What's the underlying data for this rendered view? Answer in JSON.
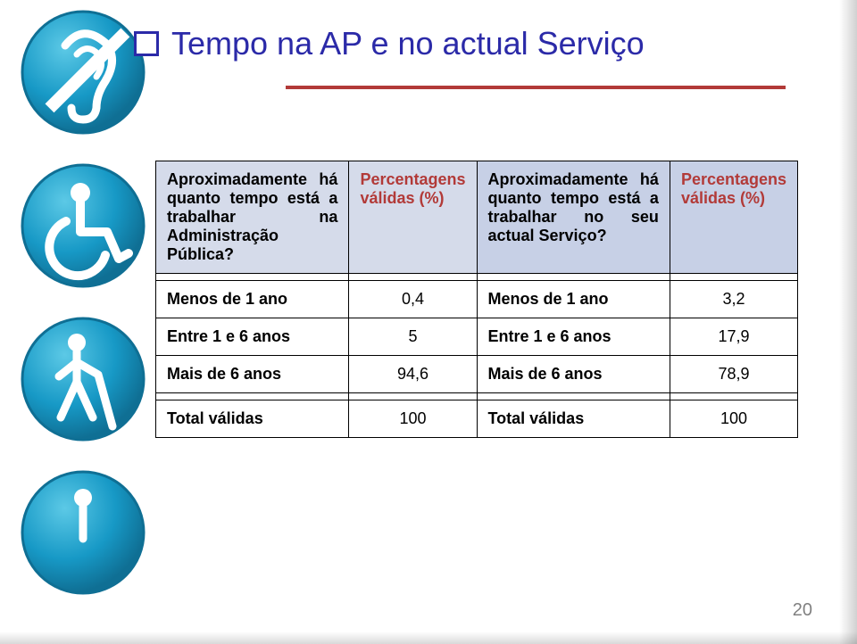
{
  "title": {
    "text": "Tempo na AP e no actual Serviço",
    "color": "#2b2aa8",
    "bullet_border_color": "#2b2aa8",
    "fontsize": 36
  },
  "divider_color": "#b23a38",
  "icons": {
    "circle_fill": "#1799c6",
    "circle_stroke": "#0f6f94",
    "inner_fill": "#ffffff"
  },
  "table": {
    "header_bg_left": "#d5dbea",
    "header_bg_right": "#c7d0e6",
    "border_color": "#000000",
    "font_size": 18,
    "percent_header_color": "#b23a38",
    "col_widths_pct": [
      34,
      16,
      34,
      16
    ],
    "columns": [
      "Aproximadamente há quanto tempo está a trabalhar na Administração Pública?",
      "Percentagens válidas (%)",
      "Aproximadamente há quanto tempo está a trabalhar no seu actual Serviço?",
      "Percentagens válidas (%)"
    ],
    "rows": [
      [
        "Menos de 1 ano",
        "0,4",
        "Menos de 1 ano",
        "3,2"
      ],
      [
        "Entre 1 e 6 anos",
        "5",
        "Entre 1 e 6 anos",
        "17,9"
      ],
      [
        "Mais de 6 anos",
        "94,6",
        "Mais de 6 anos",
        "78,9"
      ]
    ],
    "total_row": [
      "Total válidas",
      "100",
      "Total válidas",
      "100"
    ]
  },
  "page_number": "20"
}
